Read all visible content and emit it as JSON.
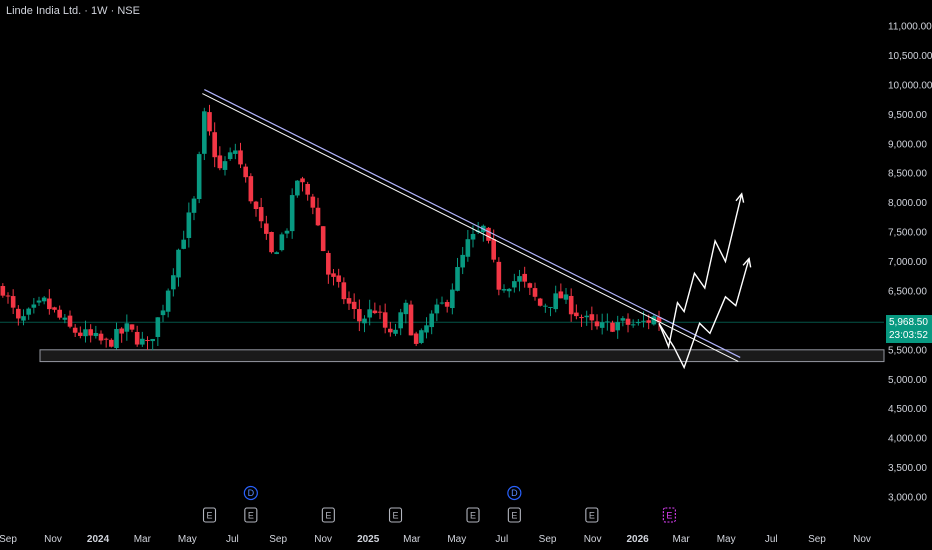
{
  "legend": {
    "symbol": "Linde India Ltd.",
    "interval": "1W",
    "exchange": "NSE"
  },
  "last_price": {
    "value_label": "5,968.50",
    "countdown": "23:03:52",
    "value": 5968.5,
    "color": "#089981"
  },
  "colors": {
    "up": "#089981",
    "down": "#f23645",
    "background": "#000000",
    "trendline": "#b2b5ff",
    "projection": "#ffffff"
  },
  "chart_data": {
    "type": "candlestick",
    "y_axis": {
      "ylim": [
        2700,
        11500
      ],
      "ticks": [
        {
          "value": 11000,
          "label": "11,000.00"
        },
        {
          "value": 10500,
          "label": "10,500.00"
        },
        {
          "value": 10000,
          "label": "10,000.00"
        },
        {
          "value": 9500,
          "label": "9,500.00"
        },
        {
          "value": 9000,
          "label": "9,000.00"
        },
        {
          "value": 8500,
          "label": "8,500.00"
        },
        {
          "value": 8000,
          "label": "8,000.00"
        },
        {
          "value": 7500,
          "label": "7,500.00"
        },
        {
          "value": 7000,
          "label": "7,000.00"
        },
        {
          "value": 6500,
          "label": "6,500.00"
        },
        {
          "value": 5500,
          "label": "5,500.00"
        },
        {
          "value": 5000,
          "label": "5,000.00"
        },
        {
          "value": 4500,
          "label": "4,500.00"
        },
        {
          "value": 4000,
          "label": "4,000.00"
        },
        {
          "value": 3500,
          "label": "3,500.00"
        },
        {
          "value": 3000,
          "label": "3,000.00"
        }
      ]
    },
    "x_axis": {
      "labels": [
        {
          "label": "Sep",
          "date": "2023-09-01",
          "bold": false
        },
        {
          "label": "Nov",
          "date": "2023-11-01",
          "bold": false
        },
        {
          "label": "2024",
          "date": "2024-01-01",
          "bold": true
        },
        {
          "label": "Mar",
          "date": "2024-03-01",
          "bold": false
        },
        {
          "label": "May",
          "date": "2024-05-01",
          "bold": false
        },
        {
          "label": "Jul",
          "date": "2024-07-01",
          "bold": false
        },
        {
          "label": "Sep",
          "date": "2024-09-01",
          "bold": false
        },
        {
          "label": "Nov",
          "date": "2024-11-01",
          "bold": false
        },
        {
          "label": "2025",
          "date": "2025-01-01",
          "bold": true
        },
        {
          "label": "Mar",
          "date": "2025-03-01",
          "bold": false
        },
        {
          "label": "May",
          "date": "2025-05-01",
          "bold": false
        },
        {
          "label": "Jul",
          "date": "2025-07-01",
          "bold": false
        },
        {
          "label": "Sep",
          "date": "2025-09-01",
          "bold": false
        },
        {
          "label": "Nov",
          "date": "2025-11-01",
          "bold": false
        },
        {
          "label": "2026",
          "date": "2026-01-01",
          "bold": true
        },
        {
          "label": "Mar",
          "date": "2026-03-01",
          "bold": false
        },
        {
          "label": "May",
          "date": "2026-05-01",
          "bold": false
        },
        {
          "label": "Jul",
          "date": "2026-07-01",
          "bold": false
        },
        {
          "label": "Sep",
          "date": "2026-09-01",
          "bold": false
        },
        {
          "label": "Nov",
          "date": "2026-11-01",
          "bold": false
        }
      ],
      "xlim": [
        "2023-09-01",
        "2026-11-25"
      ]
    },
    "anchors": [
      {
        "date": "2023-08-25",
        "close": 6550
      },
      {
        "date": "2023-09-15",
        "close": 5950
      },
      {
        "date": "2023-10-20",
        "close": 6300
      },
      {
        "date": "2023-11-24",
        "close": 5850
      },
      {
        "date": "2024-01-12",
        "close": 5600
      },
      {
        "date": "2024-02-09",
        "close": 5850
      },
      {
        "date": "2024-03-08",
        "close": 5550
      },
      {
        "date": "2024-03-29",
        "close": 6250
      },
      {
        "date": "2024-04-19",
        "close": 7200
      },
      {
        "date": "2024-05-10",
        "close": 8000
      },
      {
        "date": "2024-05-24",
        "close": 9450
      },
      {
        "date": "2024-06-14",
        "close": 8550
      },
      {
        "date": "2024-07-05",
        "close": 8900
      },
      {
        "date": "2024-07-26",
        "close": 8100
      },
      {
        "date": "2024-08-23",
        "close": 7100
      },
      {
        "date": "2024-09-13",
        "close": 7600
      },
      {
        "date": "2024-09-27",
        "close": 8400
      },
      {
        "date": "2024-10-18",
        "close": 8000
      },
      {
        "date": "2024-11-08",
        "close": 6800
      },
      {
        "date": "2024-11-29",
        "close": 6400
      },
      {
        "date": "2024-12-20",
        "close": 6000
      },
      {
        "date": "2025-01-10",
        "close": 6200
      },
      {
        "date": "2025-01-31",
        "close": 5700
      },
      {
        "date": "2025-02-21",
        "close": 6200
      },
      {
        "date": "2025-03-07",
        "close": 5550
      },
      {
        "date": "2025-03-28",
        "close": 6050
      },
      {
        "date": "2025-04-18",
        "close": 6350
      },
      {
        "date": "2025-05-16",
        "close": 7300
      },
      {
        "date": "2025-06-06",
        "close": 7550
      },
      {
        "date": "2025-06-27",
        "close": 6600
      },
      {
        "date": "2025-07-25",
        "close": 6700
      },
      {
        "date": "2025-08-22",
        "close": 6250
      },
      {
        "date": "2025-09-19",
        "close": 6400
      },
      {
        "date": "2025-10-17",
        "close": 6050
      },
      {
        "date": "2025-11-07",
        "close": 5850
      },
      {
        "date": "2025-12-05",
        "close": 5950
      },
      {
        "date": "2026-01-02",
        "close": 5920
      },
      {
        "date": "2026-01-23",
        "close": 6050
      },
      {
        "date": "2026-01-30",
        "close": 5968.5
      }
    ],
    "trendline": {
      "start": {
        "date": "2024-05-24",
        "value": 9920
      },
      "end": {
        "date": "2026-05-20",
        "value": 5370
      }
    },
    "support_zone": {
      "from": "2023-09-01",
      "to": "2026-11-25",
      "low": 5300,
      "high": 5500
    },
    "current_price_line": 5968.5,
    "projections": [
      {
        "points": [
          {
            "date": "2026-01-30",
            "value": 5950
          },
          {
            "date": "2026-02-12",
            "value": 5550
          },
          {
            "date": "2026-02-24",
            "value": 6300
          },
          {
            "date": "2026-03-05",
            "value": 6150
          },
          {
            "date": "2026-03-19",
            "value": 6800
          },
          {
            "date": "2026-04-02",
            "value": 6550
          },
          {
            "date": "2026-04-16",
            "value": 7350
          },
          {
            "date": "2026-04-30",
            "value": 7000
          },
          {
            "date": "2026-05-22",
            "value": 8150
          }
        ]
      },
      {
        "points": [
          {
            "date": "2026-01-30",
            "value": 5950
          },
          {
            "date": "2026-02-19",
            "value": 5550
          },
          {
            "date": "2026-03-05",
            "value": 5200
          },
          {
            "date": "2026-03-26",
            "value": 5950
          },
          {
            "date": "2026-04-09",
            "value": 5780
          },
          {
            "date": "2026-04-30",
            "value": 6400
          },
          {
            "date": "2026-05-14",
            "value": 6250
          },
          {
            "date": "2026-06-01",
            "value": 7050
          }
        ]
      }
    ],
    "events": [
      {
        "label": "D",
        "date": "2024-07-26",
        "kind": "dividend",
        "row": 1
      },
      {
        "label": "D",
        "date": "2025-07-18",
        "kind": "dividend",
        "row": 1
      },
      {
        "label": "E",
        "date": "2024-05-31",
        "kind": "earnings",
        "row": 2
      },
      {
        "label": "E",
        "date": "2024-07-26",
        "kind": "earnings",
        "row": 2
      },
      {
        "label": "E",
        "date": "2024-11-08",
        "kind": "earnings",
        "row": 2
      },
      {
        "label": "E",
        "date": "2025-02-07",
        "kind": "earnings",
        "row": 2
      },
      {
        "label": "E",
        "date": "2025-05-23",
        "kind": "earnings",
        "row": 2
      },
      {
        "label": "E",
        "date": "2025-07-18",
        "kind": "earnings",
        "row": 2
      },
      {
        "label": "E",
        "date": "2025-10-31",
        "kind": "earnings",
        "row": 2
      },
      {
        "label": "E",
        "date": "2026-02-13",
        "kind": "earnings-upcoming",
        "row": 2
      }
    ]
  }
}
